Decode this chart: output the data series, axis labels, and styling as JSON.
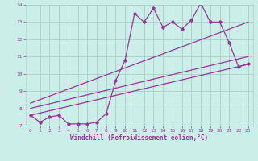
{
  "title": "",
  "xlabel": "Windchill (Refroidissement éolien,°C)",
  "xlim": [
    -0.5,
    23.5
  ],
  "ylim": [
    7,
    14
  ],
  "yticks": [
    7,
    8,
    9,
    10,
    11,
    12,
    13,
    14
  ],
  "xticks": [
    0,
    1,
    2,
    3,
    4,
    5,
    6,
    7,
    8,
    9,
    10,
    11,
    12,
    13,
    14,
    15,
    16,
    17,
    18,
    19,
    20,
    21,
    22,
    23
  ],
  "bg_color": "#cceee8",
  "grid_color": "#aad4cc",
  "line_color": "#993399",
  "data_x": [
    0,
    1,
    2,
    3,
    4,
    5,
    6,
    7,
    8,
    9,
    10,
    11,
    12,
    13,
    14,
    15,
    16,
    17,
    18,
    19,
    20,
    21,
    22,
    23
  ],
  "data_y": [
    7.6,
    7.2,
    7.5,
    7.6,
    7.1,
    7.1,
    7.1,
    7.2,
    7.7,
    9.6,
    10.8,
    13.5,
    13.0,
    13.8,
    12.7,
    13.0,
    12.6,
    13.1,
    14.1,
    13.0,
    13.0,
    11.8,
    10.4,
    10.6
  ],
  "trend1_x": [
    0,
    23
  ],
  "trend1_y": [
    7.6,
    10.55
  ],
  "trend2_x": [
    0,
    23
  ],
  "trend2_y": [
    8.0,
    11.0
  ],
  "trend3_x": [
    0,
    23
  ],
  "trend3_y": [
    8.3,
    13.0
  ]
}
